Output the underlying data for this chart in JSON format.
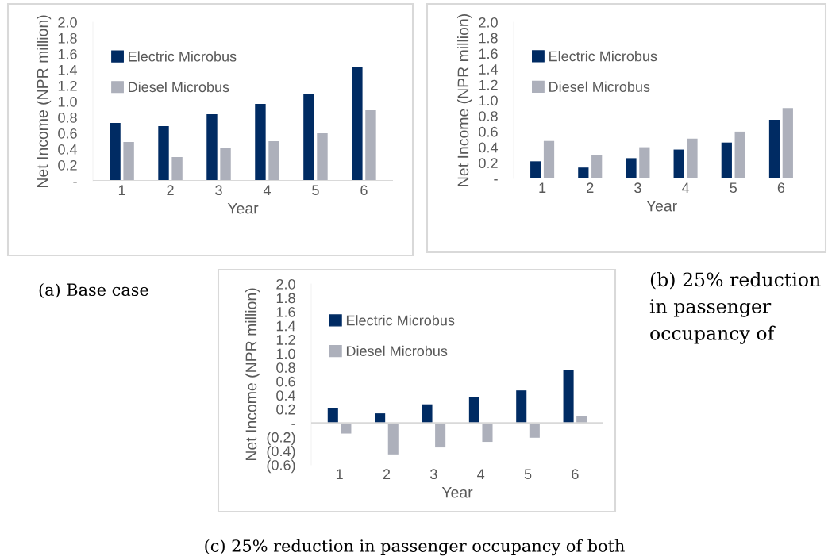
{
  "chart_data": [
    {
      "type": "bar",
      "xlabel": "Year",
      "ylabel": "Net Income (NPR million)",
      "annotations": [
        "(a) Base case"
      ],
      "categories": [
        "1",
        "2",
        "3",
        "4",
        "5",
        "6"
      ],
      "series": [
        {
          "name": "Electric Microbus",
          "color": "#002b63",
          "values": [
            0.73,
            0.69,
            0.84,
            0.97,
            1.1,
            1.43
          ]
        },
        {
          "name": "Diesel Microbus",
          "color": "#adb0bb",
          "values": [
            0.49,
            0.3,
            0.41,
            0.5,
            0.6,
            0.89
          ]
        }
      ],
      "ylim": [
        0,
        2.0
      ],
      "yticks": [
        {
          "value": 0,
          "label": "-"
        },
        {
          "value": 0.2,
          "label": "0.2"
        },
        {
          "value": 0.4,
          "label": "0.4"
        },
        {
          "value": 0.6,
          "label": "0.6"
        },
        {
          "value": 0.8,
          "label": "0.8"
        },
        {
          "value": 1.0,
          "label": "1.0"
        },
        {
          "value": 1.2,
          "label": "1.2"
        },
        {
          "value": 1.4,
          "label": "1.4"
        },
        {
          "value": 1.6,
          "label": "1.6"
        },
        {
          "value": 1.8,
          "label": "1.8"
        },
        {
          "value": 2.0,
          "label": "2.0"
        }
      ],
      "legend": "top left"
    },
    {
      "type": "bar",
      "xlabel": "Year",
      "ylabel": "Net Income (NPR million)",
      "annotations": [
        "(b) 25% reduction in passenger occupancy of"
      ],
      "categories": [
        "1",
        "2",
        "3",
        "4",
        "5",
        "6"
      ],
      "series": [
        {
          "name": "Electric Microbus",
          "color": "#002b63",
          "values": [
            0.22,
            0.14,
            0.26,
            0.37,
            0.46,
            0.75
          ]
        },
        {
          "name": "Diesel Microbus",
          "color": "#adb0bb",
          "values": [
            0.48,
            0.3,
            0.4,
            0.51,
            0.6,
            0.9
          ]
        }
      ],
      "ylim": [
        0,
        2.0
      ],
      "yticks": [
        {
          "value": 0,
          "label": "-"
        },
        {
          "value": 0.2,
          "label": "0.2"
        },
        {
          "value": 0.4,
          "label": "0.4"
        },
        {
          "value": 0.6,
          "label": "0.6"
        },
        {
          "value": 0.8,
          "label": "0.8"
        },
        {
          "value": 1.0,
          "label": "1.0"
        },
        {
          "value": 1.2,
          "label": "1.2"
        },
        {
          "value": 1.4,
          "label": "1.4"
        },
        {
          "value": 1.6,
          "label": "1.6"
        },
        {
          "value": 1.8,
          "label": "1.8"
        },
        {
          "value": 2.0,
          "label": "2.0"
        }
      ],
      "legend": "top left"
    },
    {
      "type": "bar",
      "xlabel": "Year",
      "ylabel": "Net Income (NPR million)",
      "annotations": [
        "(c) 25% reduction in passenger occupancy of both"
      ],
      "categories": [
        "1",
        "2",
        "3",
        "4",
        "5",
        "6"
      ],
      "series": [
        {
          "name": "Electric Microbus",
          "color": "#002b63",
          "values": [
            0.22,
            0.14,
            0.27,
            0.37,
            0.47,
            0.76
          ]
        },
        {
          "name": "Diesel Microbus",
          "color": "#adb0bb",
          "values": [
            -0.15,
            -0.45,
            -0.35,
            -0.27,
            -0.21,
            0.1
          ]
        }
      ],
      "ylim": [
        -0.6,
        2.0
      ],
      "yticks": [
        {
          "value": -0.6,
          "label": "(0.6)"
        },
        {
          "value": -0.4,
          "label": "(0.4)"
        },
        {
          "value": -0.2,
          "label": "(0.2)"
        },
        {
          "value": 0,
          "label": "-"
        },
        {
          "value": 0.2,
          "label": "0.2"
        },
        {
          "value": 0.4,
          "label": "0.4"
        },
        {
          "value": 0.6,
          "label": "0.6"
        },
        {
          "value": 0.8,
          "label": "0.8"
        },
        {
          "value": 1.0,
          "label": "1.0"
        },
        {
          "value": 1.2,
          "label": "1.2"
        },
        {
          "value": 1.4,
          "label": "1.4"
        },
        {
          "value": 1.6,
          "label": "1.6"
        },
        {
          "value": 1.8,
          "label": "1.8"
        },
        {
          "value": 2.0,
          "label": "2.0"
        }
      ],
      "legend": "top left"
    }
  ]
}
